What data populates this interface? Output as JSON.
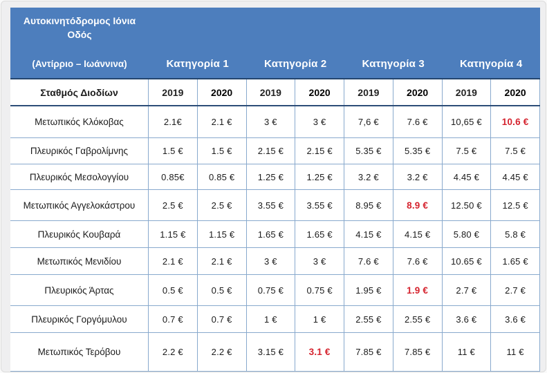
{
  "colors": {
    "header_bg": "#4d7ebd",
    "border_light": "#88a9cd",
    "border_dark": "#2c4d77",
    "highlight_red": "#d5232e"
  },
  "chart_data": {
    "type": "table",
    "title": "Αυτοκινητόδρομος Ιόνια Οδός",
    "subtitle": "(Αντίρριο – Ιωάννινα)",
    "category_headers": [
      "Κατηγορία 1",
      "Κατηγορία 2",
      "Κατηγορία 3",
      "Κατηγορία 4"
    ],
    "station_header": "Σταθμός Διοδίων",
    "year_headers": [
      "2019",
      "2020",
      "2019",
      "2020",
      "2019",
      "2020",
      "2019",
      "2020"
    ],
    "rows": [
      {
        "station": "Μετωπικός Κλόκοβας",
        "values": [
          "2.1€",
          "2.1 €",
          "3 €",
          "3 €",
          "7,6 €",
          "7.6 €",
          "10,65 €",
          "10.6 €"
        ],
        "red_indices": [
          7
        ]
      },
      {
        "station": "Πλευρικός Γαβρολίμνης",
        "values": [
          "1.5 €",
          "1.5 €",
          "2.15 €",
          "2.15 €",
          "5.35 €",
          "5.35 €",
          "7.5 €",
          "7.5 €"
        ],
        "red_indices": []
      },
      {
        "station": "Πλευρικός Μεσολογγίου",
        "values": [
          "0.85€",
          "0.85 €",
          "1.25 €",
          "1.25 €",
          "3.2 €",
          "3.2 €",
          "4.45 €",
          "4.45 €"
        ],
        "red_indices": []
      },
      {
        "station": "Μετωπικός Αγγελοκάστρου",
        "values": [
          "2.5 €",
          "2.5 €",
          "3.55 €",
          "3.55 €",
          "8.95 €",
          "8.9 €",
          "12.50 €",
          "12.5 €"
        ],
        "red_indices": [
          5
        ]
      },
      {
        "station": "Πλευρικός Κουβαρά",
        "values": [
          "1.15 €",
          "1.15 €",
          "1.65 €",
          "1.65 €",
          "4.15 €",
          "4.15 €",
          "5.80 €",
          "5.8 €"
        ],
        "red_indices": []
      },
      {
        "station": "Μετωπικός Μενιδίου",
        "values": [
          "2.1 €",
          "2.1 €",
          "3 €",
          "3 €",
          "7.6 €",
          "7.6 €",
          "10.65 €",
          "1.65 €"
        ],
        "red_indices": []
      },
      {
        "station": "Πλευρικός Άρτας",
        "values": [
          "0.5 €",
          "0.5 €",
          "0.75 €",
          "0.75 €",
          "1.95 €",
          "1.9 €",
          "2.7 €",
          "2.7 €"
        ],
        "red_indices": [
          5
        ]
      },
      {
        "station": "Πλευρικός Γοργόμυλου",
        "values": [
          "0.7 €",
          "0.7 €",
          "1 €",
          "1 €",
          "2.55 €",
          "2.55 €",
          "3.6 €",
          "3.6 €"
        ],
        "red_indices": []
      },
      {
        "station": "Μετωπικός Τερόβου",
        "values": [
          "2.2 €",
          "2.2 €",
          "3.15 €",
          "3.1 €",
          "7.85 €",
          "7.85 €",
          "11 €",
          "11 €"
        ],
        "red_indices": [
          3
        ]
      }
    ]
  }
}
